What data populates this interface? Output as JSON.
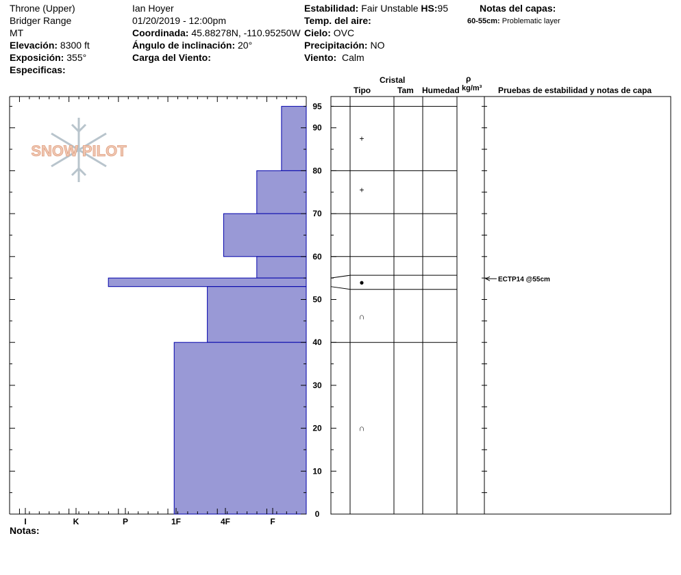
{
  "header": {
    "location": "Throne (Upper)",
    "range": "Bridger Range",
    "state": "MT",
    "elevation_label": "Elevación:",
    "elevation_value": "8300 ft",
    "aspect_label": "Exposición:",
    "aspect_value": "355°",
    "specifics_label": "Especificas:",
    "observer": "Ian Hoyer",
    "datetime": "01/20/2019 - 12:00pm",
    "coord_label": "Coordinada:",
    "coord_value": "45.88278N, -110.95250W",
    "slope_label": "Ángulo de inclinación:",
    "slope_value": "20°",
    "wind_load_label": "Carga del Viento:",
    "stability_label": "Estabilidad:",
    "stability_value": "Fair Unstable",
    "hs_label": "HS:",
    "hs_value": "95",
    "air_temp_label": "Temp. del aire:",
    "sky_label": "Cielo:",
    "sky_value": "OVC",
    "precip_label": "Precipitación:",
    "precip_value": "NO",
    "wind_label": "Viento:",
    "wind_value": "Calm",
    "layer_notes_label": "Notas del capas:",
    "layer_note_range": "60-55cm:",
    "layer_note_text": "Problematic layer"
  },
  "logo_text": "SNOW PILOT",
  "notes_label": "Notas:",
  "table_headers": {
    "crystal": "Cristal",
    "type": "Tipo",
    "size": "Tam",
    "moisture": "Humedad",
    "rho": "ρ",
    "density_unit": "kg/m³",
    "tests": "Pruebas de estabilidad y notas de capa"
  },
  "stability_test": "ECTP14 @55cm",
  "colors": {
    "bar_fill": "#9999d6",
    "bar_stroke": "#0000aa"
  },
  "chart_data": {
    "type": "bar",
    "orientation": "horizontal",
    "xlabel": "",
    "ylabel": "",
    "hardness_categories": [
      "I",
      "K",
      "P",
      "1F",
      "4F",
      "F"
    ],
    "ylim": [
      0,
      95
    ],
    "y_ticks": [
      0,
      10,
      20,
      30,
      40,
      50,
      60,
      70,
      80,
      90,
      95
    ],
    "layers": [
      {
        "top": 95,
        "bottom": 80,
        "hardness": "F"
      },
      {
        "top": 80,
        "bottom": 70,
        "hardness": "4F+"
      },
      {
        "top": 70,
        "bottom": 60,
        "hardness": "1F+"
      },
      {
        "top": 60,
        "bottom": 55,
        "hardness": "4F+"
      },
      {
        "top": 55,
        "bottom": 53,
        "hardness": "P+"
      },
      {
        "top": 53,
        "bottom": 40,
        "hardness": "1F-"
      },
      {
        "top": 40,
        "bottom": 0,
        "hardness": "1F"
      }
    ],
    "hardness_scale_positions": {
      "F": 0.5,
      "4F+": 1.0,
      "1F+": 1.67,
      "4F": 1.0,
      "1F-": 2.0,
      "1F": 2.67,
      "P+": 4.0
    },
    "grain_symbols": [
      {
        "depth": 87.5,
        "symbol": "+"
      },
      {
        "depth": 75.5,
        "symbol": "+"
      },
      {
        "depth": 54,
        "symbol": "●"
      },
      {
        "depth": 46,
        "symbol": "∩"
      },
      {
        "depth": 20,
        "symbol": "∩"
      }
    ]
  }
}
